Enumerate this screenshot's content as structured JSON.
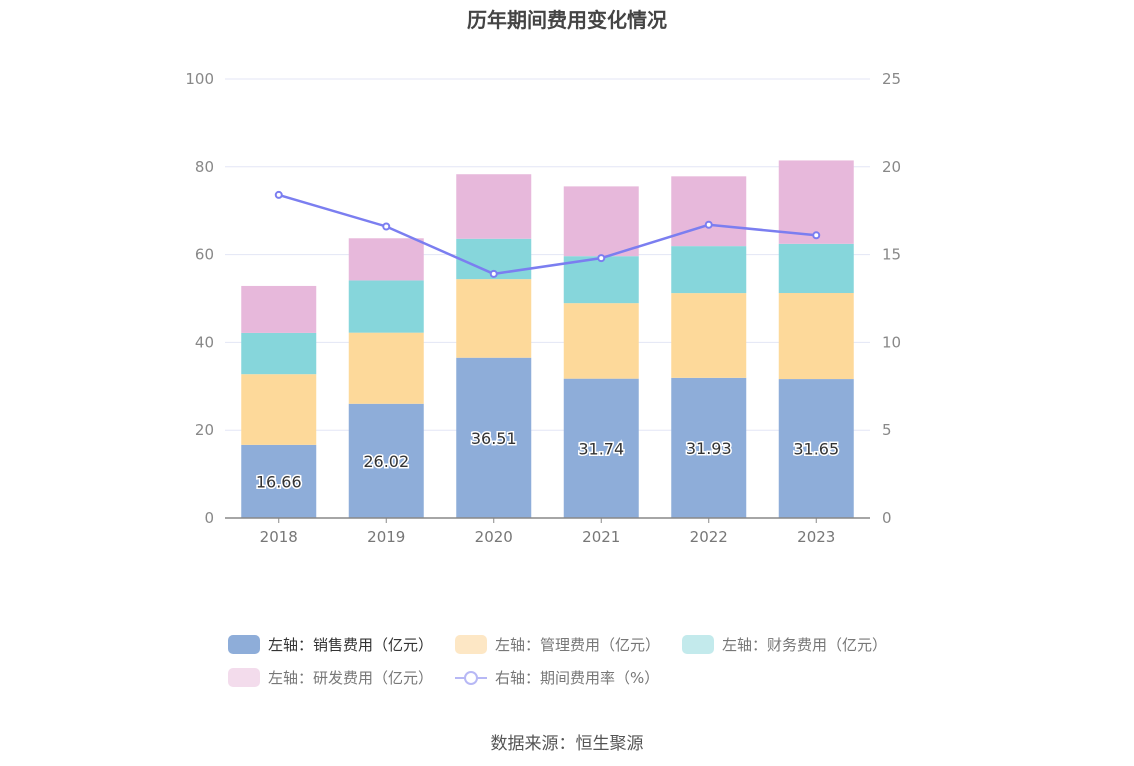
{
  "title": "历年期间费用变化情况",
  "source": "数据来源：恒生聚源",
  "chart_data": {
    "type": "bar",
    "stacked": true,
    "categories": [
      "2018",
      "2019",
      "2020",
      "2021",
      "2022",
      "2023"
    ],
    "y_left": {
      "min": 0,
      "max": 100,
      "ticks": [
        "0",
        "20",
        "40",
        "60",
        "80",
        "100"
      ]
    },
    "y_right": {
      "min": 0,
      "max": 25,
      "ticks": [
        "0",
        "5",
        "10",
        "15",
        "20",
        "25"
      ]
    },
    "grid": true,
    "series": [
      {
        "name": "左轴：销售费用（亿元）",
        "axis": "left",
        "kind": "bar",
        "color": "#8eadd9",
        "values": [
          16.66,
          26.02,
          36.51,
          31.74,
          31.93,
          31.65
        ],
        "labels": [
          "16.66",
          "26.02",
          "36.51",
          "31.74",
          "31.93",
          "31.65"
        ]
      },
      {
        "name": "左轴：管理费用（亿元）",
        "axis": "left",
        "kind": "bar",
        "color": "#fdd99a",
        "legend_color": "#fde7c5",
        "values": [
          16.1,
          16.2,
          17.9,
          17.2,
          19.3,
          19.6
        ]
      },
      {
        "name": "左轴：财务费用（亿元）",
        "axis": "left",
        "kind": "bar",
        "color": "#86d6db",
        "legend_color": "#c3eaec",
        "values": [
          9.4,
          11.9,
          9.2,
          10.7,
          10.7,
          11.2
        ]
      },
      {
        "name": "左轴：研发费用（亿元）",
        "axis": "left",
        "kind": "bar",
        "color": "#e7b8db",
        "legend_color": "#f3dcec",
        "values": [
          10.7,
          9.6,
          14.7,
          15.9,
          15.9,
          19.0
        ]
      },
      {
        "name": "右轴：期间费用率（%）",
        "axis": "right",
        "kind": "line",
        "color": "#7b7ef0",
        "legend_color": "#b7b8f5",
        "values": [
          18.4,
          16.6,
          13.9,
          14.8,
          16.7,
          16.1
        ]
      }
    ],
    "legend_position": "bottom"
  }
}
